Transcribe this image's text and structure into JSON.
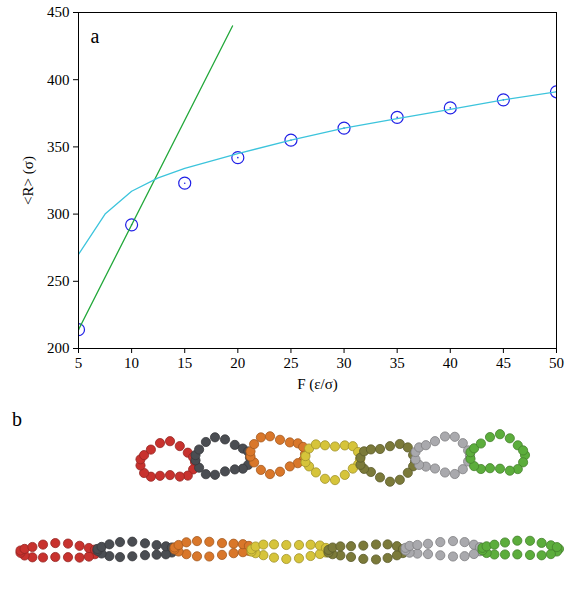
{
  "chart_data": {
    "type": "line",
    "annotations": [
      "a"
    ],
    "x_label": "F (ε/σ)",
    "y_label": "<R> (σ)",
    "xlim": [
      5,
      50
    ],
    "xticks": [
      5,
      10,
      15,
      20,
      25,
      30,
      35,
      40,
      45,
      50
    ],
    "ylim": [
      200,
      450
    ],
    "yticks": [
      200,
      250,
      300,
      350,
      400,
      450
    ],
    "grid": false,
    "series": [
      {
        "type": "scatter",
        "marker": "open_circle",
        "color": "#1f1fe6",
        "x": [
          5,
          10,
          15,
          20,
          25,
          30,
          35,
          40,
          45,
          50
        ],
        "values": [
          214,
          292,
          323,
          342,
          355,
          364,
          372,
          379,
          385,
          391
        ]
      },
      {
        "type": "line",
        "line_style": "solid",
        "color": "#22a83a",
        "x": [
          5,
          19.5
        ],
        "values": [
          214,
          440
        ]
      },
      {
        "type": "line",
        "line_style": "solid",
        "color": "#3cc4dc",
        "x": [
          5,
          7.5,
          10,
          12.5,
          15,
          20,
          25,
          30,
          35,
          40,
          45,
          50
        ],
        "values": [
          270,
          300,
          317,
          327,
          334,
          345,
          355,
          364,
          371,
          378,
          385,
          391
        ]
      }
    ]
  },
  "figure_b": {
    "label": "b"
  }
}
